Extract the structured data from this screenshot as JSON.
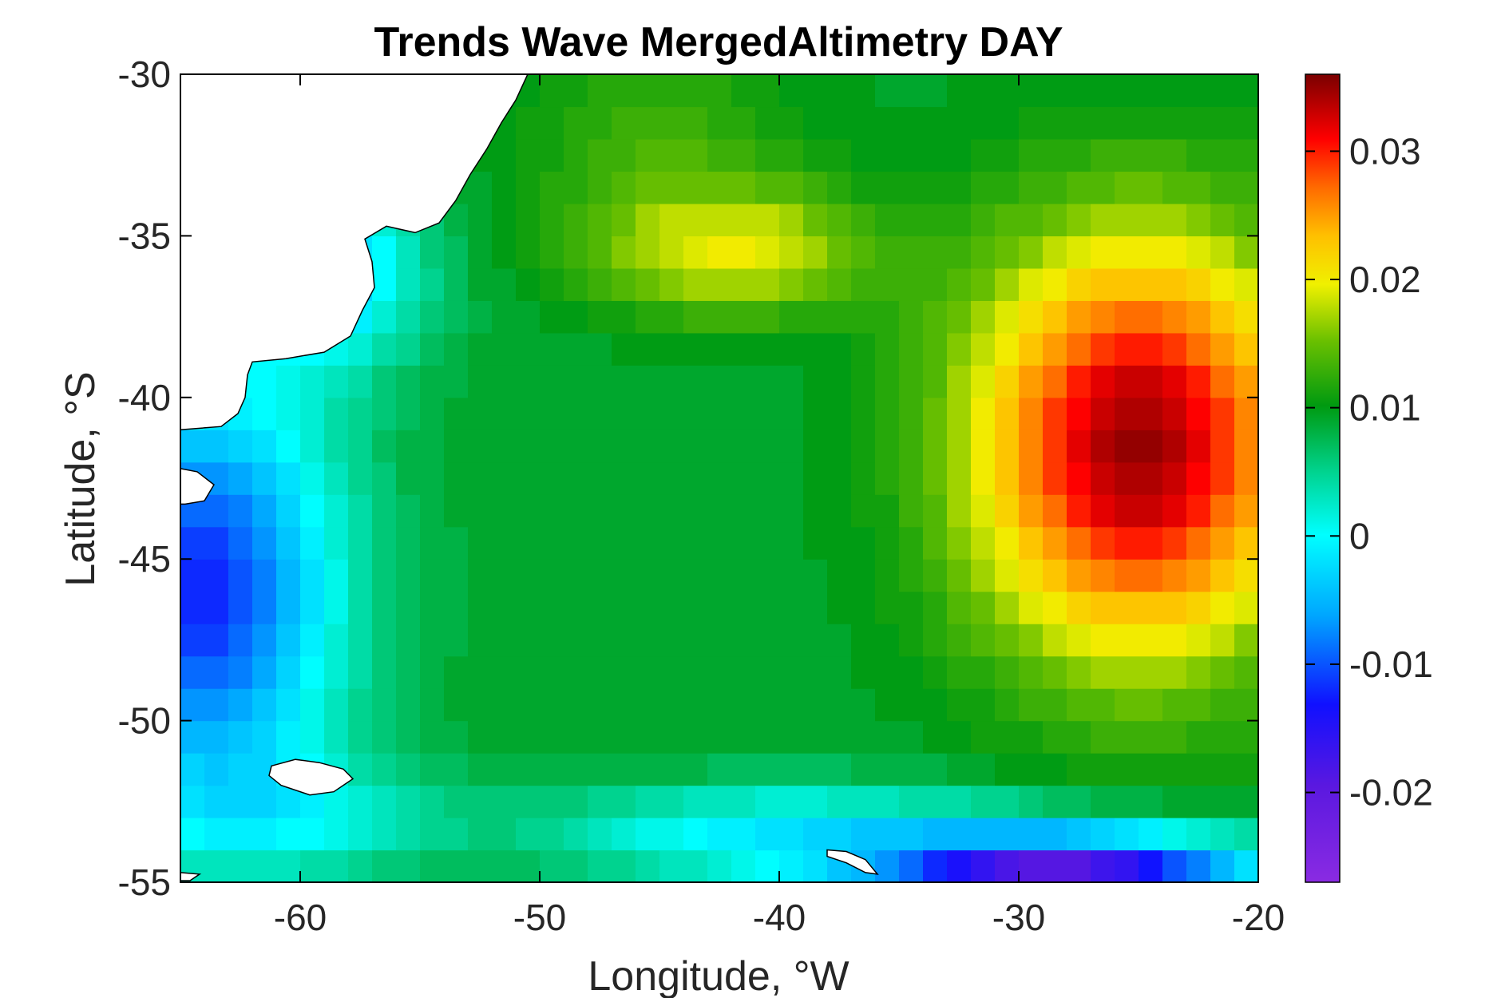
{
  "chart_data": {
    "type": "heatmap",
    "title": "Trends Wave MergedAltimetry DAY",
    "xlabel": "Longitude, °W",
    "ylabel": "Latitude, °S",
    "xlim": [
      -65,
      -20
    ],
    "ylim": [
      -55,
      -30
    ],
    "x_ticks": [
      "-60",
      "-50",
      "-40",
      "-30",
      "-20"
    ],
    "y_ticks": [
      "-30",
      "-35",
      "-40",
      "-45",
      "-50",
      "-55"
    ],
    "colorbar": {
      "range": [
        -0.027,
        0.036
      ],
      "ticks": [
        "0.03",
        "0.02",
        "0.01",
        "0",
        "-0.01",
        "-0.02"
      ],
      "colormap": "jet-like (purple-blue-cyan-green-yellow-orange-red-dark red)"
    },
    "grid_resolution_deg": 1,
    "field_description_regions": [
      {
        "region": "east 31W-20W, 36S-47S",
        "trend_approx": 0.033
      },
      {
        "region": "band near 40-46W, 34-38S",
        "trend_approx": 0.02
      },
      {
        "region": "central 40-55W, 38-48S",
        "trend_approx": 0.009
      },
      {
        "region": "west coastal 58-65W, 40-52S",
        "trend_approx": -0.012
      },
      {
        "region": "south-east 25-35W, 53-55S",
        "trend_approx": -0.02
      }
    ],
    "land": [
      "South America coast",
      "Falkland Islands",
      "South Georgia"
    ]
  }
}
